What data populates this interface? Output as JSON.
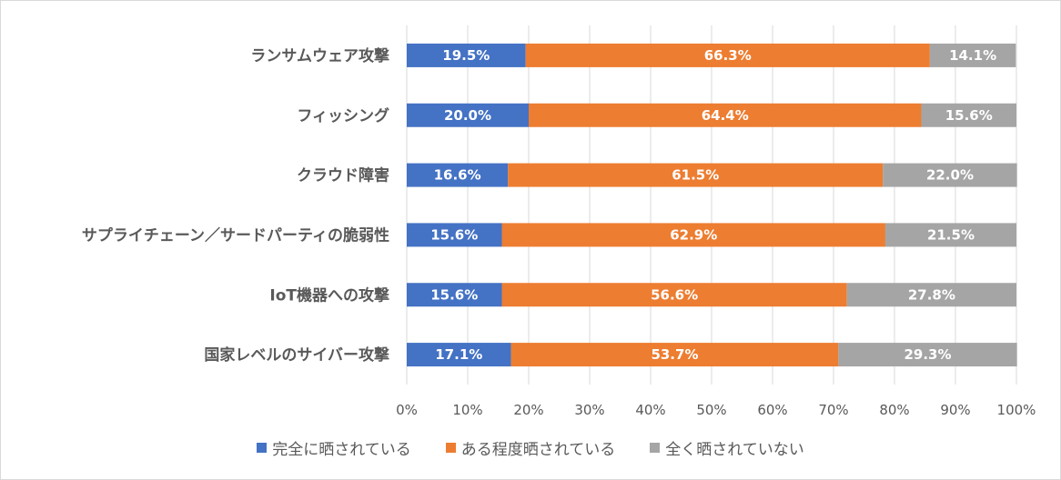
{
  "chart_data": {
    "type": "bar",
    "orientation": "horizontal",
    "stacked": true,
    "categories": [
      "ランサムウェア攻撃",
      "フィッシング",
      "クラウド障害",
      "サプライチェーン／サードパーティの脆弱性",
      "IoT機器への攻撃",
      "国家レベルのサイバー攻撃"
    ],
    "series": [
      {
        "name": "完全に晒されている",
        "color": "#4472c4",
        "values": [
          19.5,
          20.0,
          16.6,
          15.6,
          15.6,
          17.1
        ],
        "labels": [
          "19.5%",
          "20.0%",
          "16.6%",
          "15.6%",
          "15.6%",
          "17.1%"
        ]
      },
      {
        "name": "ある程度晒されている",
        "color": "#ed7d31",
        "values": [
          66.3,
          64.4,
          61.5,
          62.9,
          56.6,
          53.7
        ],
        "labels": [
          "66.3%",
          "64.4%",
          "61.5%",
          "62.9%",
          "56.6%",
          "53.7%"
        ]
      },
      {
        "name": "全く晒されていない",
        "color": "#a5a5a5",
        "values": [
          14.1,
          15.6,
          22.0,
          21.5,
          27.8,
          29.3
        ],
        "labels": [
          "14.1%",
          "15.6%",
          "22.0%",
          "21.5%",
          "27.8%",
          "29.3%"
        ]
      }
    ],
    "xlim": [
      0,
      100
    ],
    "xticks": [
      "0%",
      "10%",
      "20%",
      "30%",
      "40%",
      "50%",
      "60%",
      "70%",
      "80%",
      "90%",
      "100%"
    ],
    "grid": true,
    "legend_position": "bottom"
  }
}
